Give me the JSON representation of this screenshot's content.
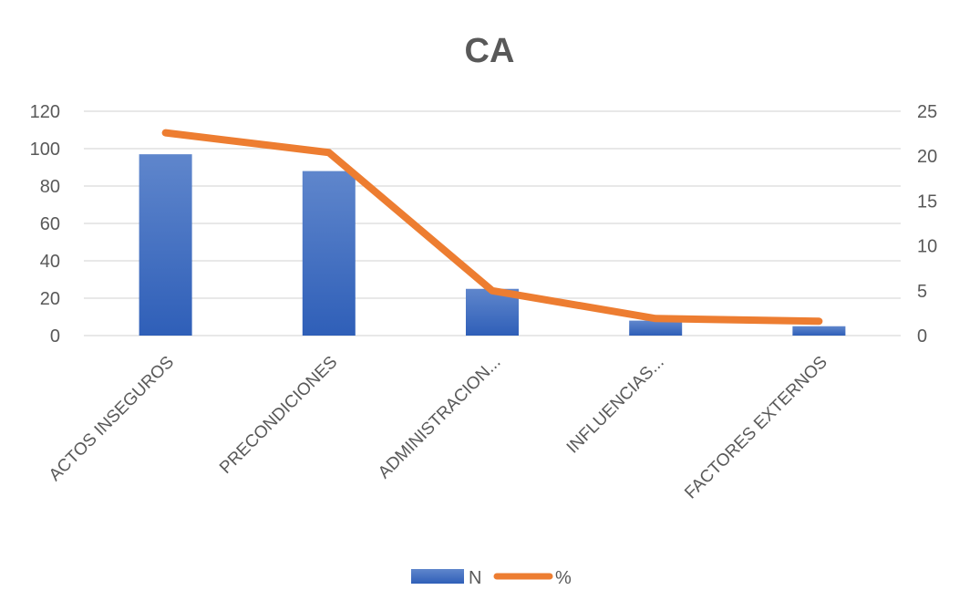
{
  "chart_data": {
    "type": "bar",
    "title": "CA",
    "categories": [
      "ACTOS INSEGUROS",
      "PRECONDICIONES",
      "ADMINISTRACION...",
      "INFLUENCIAS...",
      "FACTORES EXTERNOS"
    ],
    "series": [
      {
        "name": "N",
        "type": "bar",
        "axis": "left",
        "color": "#4472C4",
        "values": [
          97,
          88,
          25,
          8,
          5
        ]
      },
      {
        "name": "%",
        "type": "line",
        "axis": "right",
        "color": "#ED7D31",
        "values": [
          22.6,
          20.4,
          5.0,
          1.9,
          1.6
        ]
      }
    ],
    "y_left": {
      "ylim": [
        0,
        120
      ],
      "ticks": [
        "0",
        "20",
        "40",
        "60",
        "80",
        "100",
        "120"
      ]
    },
    "y_right": {
      "ylim": [
        0,
        25
      ],
      "ticks": [
        "0",
        "5",
        "10",
        "15",
        "20",
        "25"
      ]
    },
    "grid": true,
    "legend": "bottom"
  }
}
